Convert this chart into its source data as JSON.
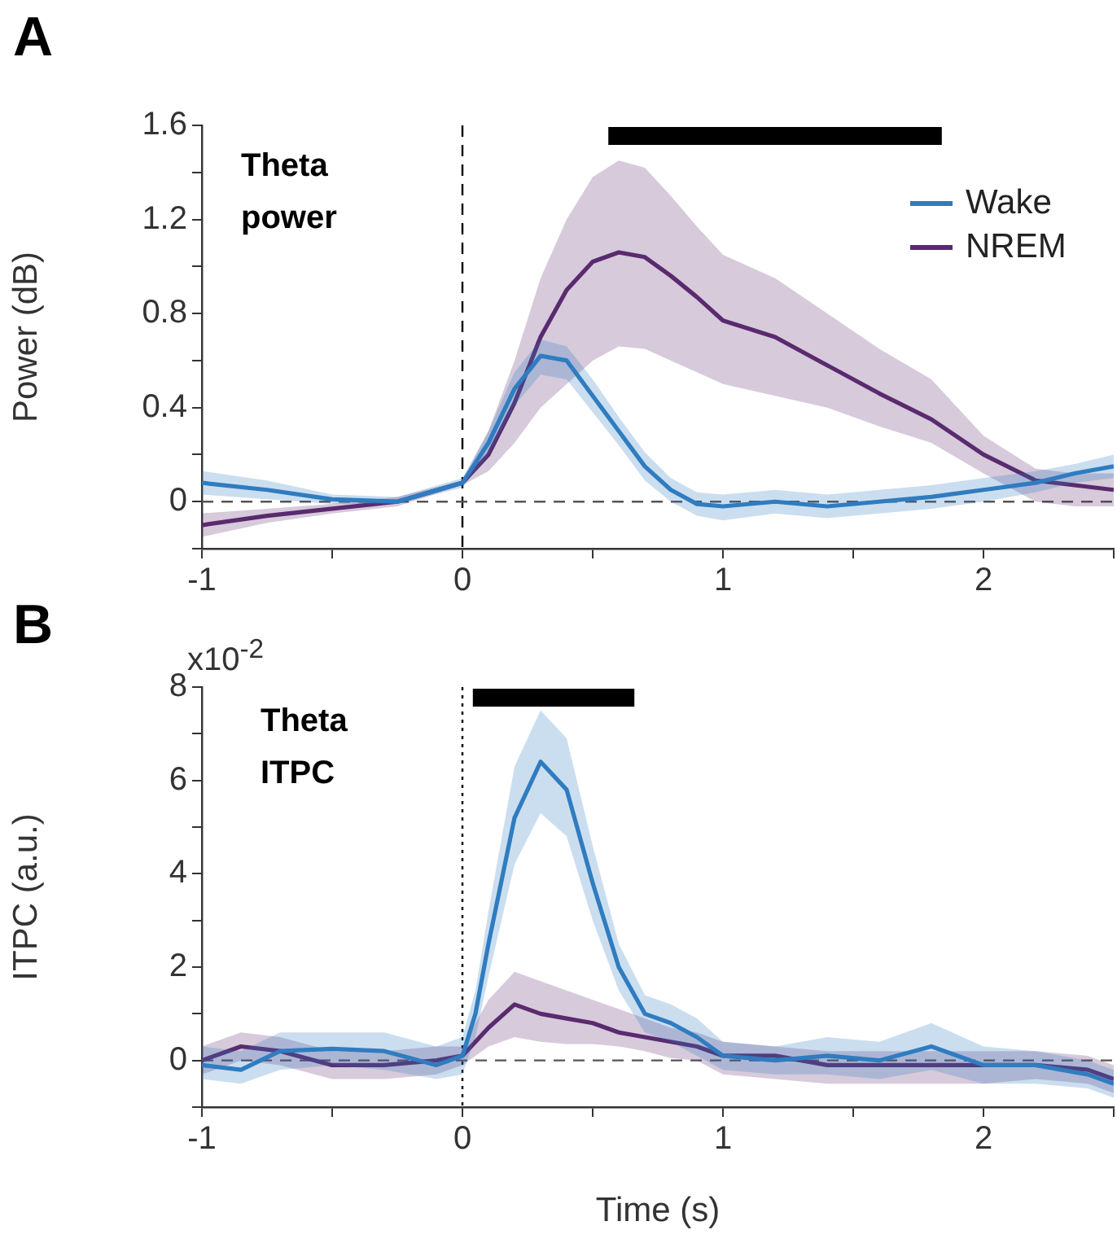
{
  "chart_data": [
    {
      "type": "line",
      "ylabel": "Power (dB)",
      "annotations": [
        "A",
        "Theta power"
      ],
      "x": [
        -1,
        -0.75,
        -0.5,
        -0.25,
        0,
        0.1,
        0.2,
        0.3,
        0.4,
        0.5,
        0.6,
        0.7,
        0.8,
        0.9,
        1.0,
        1.2,
        1.4,
        1.6,
        1.8,
        2.0,
        2.2,
        2.35,
        2.5
      ],
      "series": [
        {
          "name": "Wake",
          "color": "#2f7cc0",
          "values": [
            0.08,
            0.05,
            0.01,
            0,
            0.08,
            0.25,
            0.48,
            0.62,
            0.6,
            0.45,
            0.3,
            0.15,
            0.05,
            -0.01,
            -0.02,
            0,
            -0.02,
            0,
            0.02,
            0.05,
            0.08,
            0.12,
            0.15
          ],
          "upper": [
            0.13,
            0.09,
            0.03,
            0.02,
            0.1,
            0.3,
            0.55,
            0.69,
            0.66,
            0.52,
            0.36,
            0.21,
            0.1,
            0.04,
            0.03,
            0.05,
            0.03,
            0.05,
            0.07,
            0.1,
            0.13,
            0.16,
            0.2
          ],
          "lower": [
            0.03,
            0.01,
            -0.01,
            -0.01,
            0.06,
            0.2,
            0.41,
            0.54,
            0.52,
            0.38,
            0.24,
            0.09,
            0,
            -0.06,
            -0.08,
            -0.05,
            -0.07,
            -0.05,
            -0.03,
            0.0,
            0.04,
            0.08,
            0.1
          ]
        },
        {
          "name": "NREM",
          "color": "#5a2a6e",
          "values": [
            -0.1,
            -0.06,
            -0.03,
            0,
            0.08,
            0.2,
            0.42,
            0.7,
            0.9,
            1.02,
            1.06,
            1.04,
            0.96,
            0.87,
            0.77,
            0.7,
            0.58,
            0.46,
            0.35,
            0.2,
            0.09,
            0.07,
            0.05
          ],
          "upper": [
            -0.05,
            -0.03,
            -0.01,
            0.02,
            0.09,
            0.3,
            0.6,
            0.95,
            1.2,
            1.38,
            1.45,
            1.42,
            1.3,
            1.17,
            1.05,
            0.95,
            0.8,
            0.65,
            0.52,
            0.28,
            0.14,
            0.12,
            0.12
          ],
          "lower": [
            -0.15,
            -0.09,
            -0.05,
            -0.02,
            0.07,
            0.13,
            0.25,
            0.4,
            0.5,
            0.6,
            0.66,
            0.65,
            0.6,
            0.55,
            0.5,
            0.45,
            0.4,
            0.32,
            0.25,
            0.12,
            0.0,
            -0.02,
            -0.02
          ]
        }
      ],
      "xlim": [
        -1,
        2.5
      ],
      "xticks": [
        -1,
        {
          "value": -0.5,
          "label": null
        },
        0,
        {
          "value": 0.5,
          "label": null
        },
        1,
        {
          "value": 1.5,
          "label": null
        },
        2,
        {
          "value": 2.5,
          "label": null
        }
      ],
      "ylim": [
        -0.2,
        1.6
      ],
      "yticks": [
        {
          "value": -0.2,
          "label": null
        },
        0,
        {
          "value": 0.2,
          "label": null
        },
        0.4,
        {
          "value": 0.6,
          "label": null
        },
        0.8,
        {
          "value": 1.0,
          "label": null
        },
        1.2,
        {
          "value": 1.4,
          "label": null
        },
        1.6
      ],
      "ref_lines": [
        {
          "axis": "x",
          "value": 0,
          "color": "#000000",
          "line_style": "dashed"
        },
        {
          "axis": "y",
          "value": 0,
          "color": "#555555",
          "line_style": "dashed"
        }
      ],
      "bands": [
        {
          "axis": "x",
          "from": 0.56,
          "to": 1.84,
          "color": "#000000"
        }
      ],
      "legend": "top right"
    },
    {
      "type": "line",
      "xlabel": "Time (s)",
      "ylabel": "ITPC (a.u.)",
      "annotations": [
        "B",
        "Theta ITPC",
        "x10$^{-2}$"
      ],
      "x": [
        -1,
        -0.85,
        -0.7,
        -0.5,
        -0.3,
        -0.1,
        0,
        0.05,
        0.1,
        0.2,
        0.3,
        0.4,
        0.5,
        0.6,
        0.7,
        0.8,
        0.9,
        1.0,
        1.2,
        1.4,
        1.6,
        1.8,
        2.0,
        2.2,
        2.4,
        2.5
      ],
      "series": [
        {
          "color": "#2f7cc0",
          "values": [
            -0.1,
            -0.2,
            0.2,
            0.25,
            0.2,
            -0.1,
            0.1,
            1.0,
            2.5,
            5.2,
            6.4,
            5.8,
            3.8,
            2.0,
            1.0,
            0.8,
            0.5,
            0.1,
            0,
            0.1,
            0,
            0.3,
            -0.1,
            -0.1,
            -0.3,
            -0.5
          ],
          "upper": [
            0.3,
            0.2,
            0.6,
            0.6,
            0.6,
            0.3,
            0.5,
            1.5,
            3.2,
            6.3,
            7.5,
            6.9,
            4.6,
            2.5,
            1.4,
            1.2,
            0.9,
            0.4,
            0.3,
            0.5,
            0.4,
            0.8,
            0.3,
            0.2,
            0,
            -0.2
          ],
          "lower": [
            -0.4,
            -0.5,
            -0.2,
            -0.1,
            -0.2,
            -0.4,
            -0.3,
            0.5,
            1.8,
            4.2,
            5.3,
            4.8,
            3.0,
            1.5,
            0.6,
            0.4,
            0.1,
            -0.2,
            -0.3,
            -0.3,
            -0.4,
            -0.2,
            -0.5,
            -0.5,
            -0.6,
            -0.8
          ]
        },
        {
          "color": "#5a2a6e",
          "values": [
            0,
            0.3,
            0.2,
            -0.1,
            -0.1,
            0,
            0.1,
            0.4,
            0.7,
            1.2,
            1.0,
            0.9,
            0.8,
            0.6,
            0.5,
            0.4,
            0.3,
            0.1,
            0.1,
            -0.1,
            -0.1,
            -0.1,
            -0.1,
            -0.1,
            -0.2,
            -0.4
          ],
          "upper": [
            0.3,
            0.6,
            0.5,
            0.2,
            0.2,
            0.3,
            0.3,
            0.8,
            1.3,
            1.9,
            1.7,
            1.5,
            1.3,
            1.1,
            0.9,
            0.7,
            0.6,
            0.4,
            0.3,
            0.2,
            0.2,
            0.2,
            0.2,
            0.2,
            0.1,
            -0.1
          ],
          "lower": [
            -0.3,
            0,
            -0.1,
            -0.4,
            -0.4,
            -0.3,
            -0.1,
            0.1,
            0.3,
            0.5,
            0.4,
            0.35,
            0.35,
            0.3,
            0.2,
            0.05,
            0,
            -0.3,
            -0.4,
            -0.5,
            -0.5,
            -0.5,
            -0.5,
            -0.4,
            -0.5,
            -0.7
          ]
        }
      ],
      "xlim": [
        -1,
        2.5
      ],
      "xticks": [
        -1,
        {
          "value": -0.5,
          "label": null
        },
        0,
        {
          "value": 0.5,
          "label": null
        },
        1,
        {
          "value": 1.5,
          "label": null
        },
        2,
        {
          "value": 2.5,
          "label": null
        }
      ],
      "ylim": [
        -1,
        8
      ],
      "yticks": [
        {
          "value": -1,
          "label": null
        },
        0,
        {
          "value": 1,
          "label": null
        },
        2,
        {
          "value": 3,
          "label": null
        },
        4,
        {
          "value": 5,
          "label": null
        },
        6,
        {
          "value": 7,
          "label": null
        },
        8
      ],
      "ref_lines": [
        {
          "axis": "x",
          "value": 0,
          "color": "#000000",
          "line_style": "dotted"
        },
        {
          "axis": "y",
          "value": 0,
          "color": "#555555",
          "line_style": "dashed"
        }
      ],
      "bands": [
        {
          "axis": "x",
          "from": 0.04,
          "to": 0.66,
          "color": "#000000"
        }
      ]
    }
  ]
}
